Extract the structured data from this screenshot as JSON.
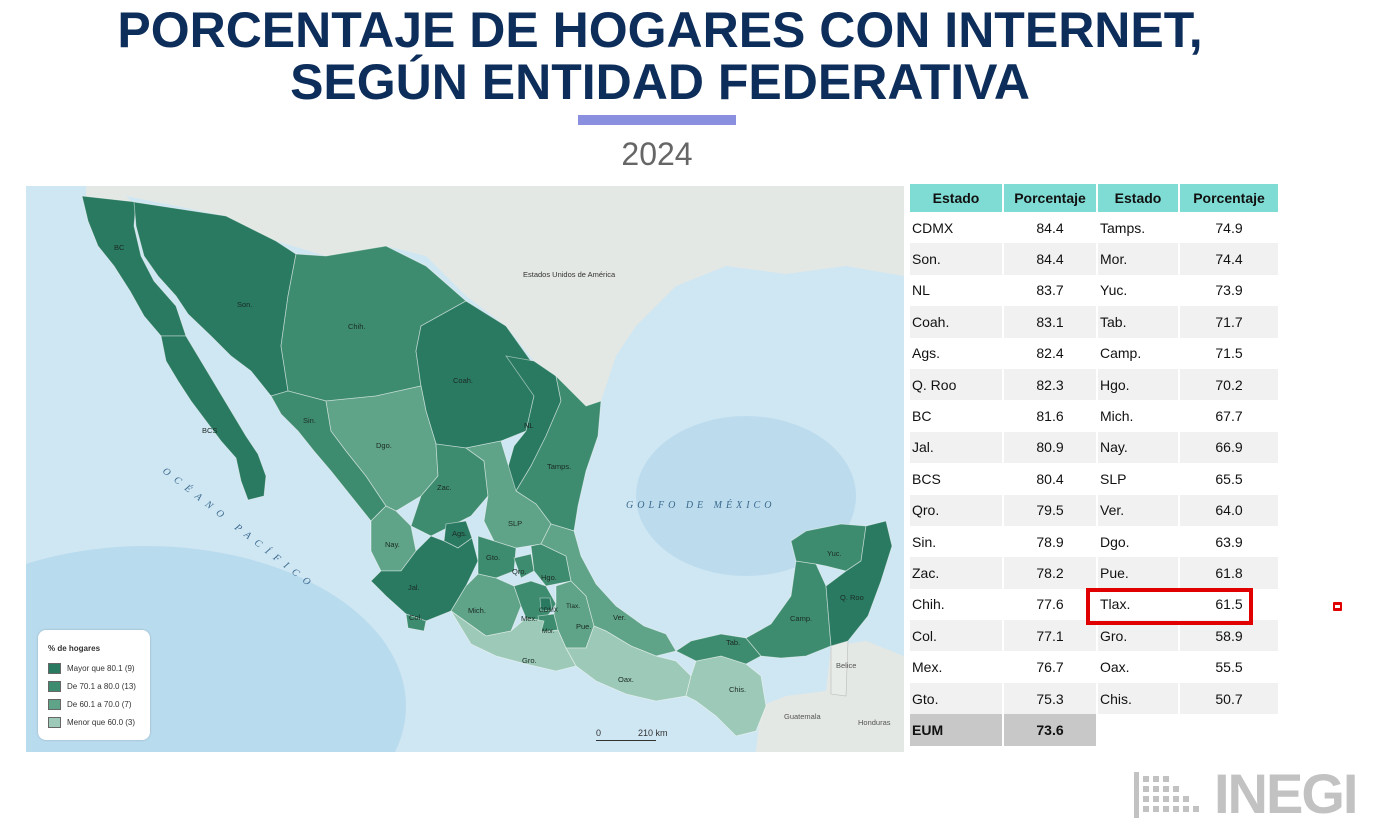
{
  "title_lines": [
    "PORCENTAJE DE HOGARES CON INTERNET,",
    "SEGÚN ENTIDAD FEDERATIVA"
  ],
  "year": "2024",
  "colors": {
    "title": "#0d2d5a",
    "accent_bar": "#8b8fe0",
    "table_header": "#7fdcd4",
    "highlight": "#e00000",
    "class_1": "#2a7a62",
    "class_2": "#3e8c70",
    "class_3": "#5fa389",
    "class_4": "#9dc9b8",
    "land_other": "#e4e8e4",
    "ocean": "#cfe6f3"
  },
  "map": {
    "labels": {
      "usa": "Estados Unidos de América",
      "gulf": "GOLFO DE MÉXICO",
      "pacific": "OCÉANO PACÍFICO",
      "belize": "Belice",
      "guatemala": "Guatemala",
      "honduras": "Honduras"
    },
    "states": [
      {
        "label": "BC",
        "class": 1
      },
      {
        "label": "Son.",
        "class": 1
      },
      {
        "label": "Chih.",
        "class": 2
      },
      {
        "label": "Coah.",
        "class": 1
      },
      {
        "label": "NL",
        "class": 1
      },
      {
        "label": "Tamps.",
        "class": 2
      },
      {
        "label": "BCS",
        "class": 1
      },
      {
        "label": "Sin.",
        "class": 2
      },
      {
        "label": "Dgo.",
        "class": 3
      },
      {
        "label": "Zac.",
        "class": 2
      },
      {
        "label": "SLP",
        "class": 3
      },
      {
        "label": "Nay.",
        "class": 3
      },
      {
        "label": "Ags.",
        "class": 1
      },
      {
        "label": "Jal.",
        "class": 1
      },
      {
        "label": "Gto.",
        "class": 2
      },
      {
        "label": "Qro.",
        "class": 2
      },
      {
        "label": "Hgo.",
        "class": 2
      },
      {
        "label": "Col.",
        "class": 2
      },
      {
        "label": "Mich.",
        "class": 3
      },
      {
        "label": "Mex.",
        "class": 2
      },
      {
        "label": "CDMX",
        "class": 1
      },
      {
        "label": "Mor.",
        "class": 2
      },
      {
        "label": "Tlax.",
        "class": 3
      },
      {
        "label": "Pue.",
        "class": 3
      },
      {
        "label": "Ver.",
        "class": 3
      },
      {
        "label": "Gro.",
        "class": 4
      },
      {
        "label": "Oax.",
        "class": 4
      },
      {
        "label": "Chis.",
        "class": 4
      },
      {
        "label": "Tab.",
        "class": 2
      },
      {
        "label": "Camp.",
        "class": 2
      },
      {
        "label": "Yuc.",
        "class": 2
      },
      {
        "label": "Q. Roo",
        "class": 1
      }
    ],
    "legend": {
      "title": "% de hogares",
      "items": [
        {
          "label": "Mayor que 80.1 (9)",
          "color": "#2a7a62"
        },
        {
          "label": "De 70.1 a 80.0 (13)",
          "color": "#3e8c70"
        },
        {
          "label": "De 60.1 a 70.0 (7)",
          "color": "#5fa389"
        },
        {
          "label": "Menor que 60.0 (3)",
          "color": "#9dc9b8"
        }
      ]
    },
    "scale": {
      "start": "0",
      "end": "210 km"
    }
  },
  "table": {
    "headers": [
      "Estado",
      "Porcentaje",
      "Estado",
      "Porcentaje"
    ],
    "rows": [
      [
        "CDMX",
        "84.4",
        "Tamps.",
        "74.9"
      ],
      [
        "Son.",
        "84.4",
        "Mor.",
        "74.4"
      ],
      [
        "NL",
        "83.7",
        "Yuc.",
        "73.9"
      ],
      [
        "Coah.",
        "83.1",
        "Tab.",
        "71.7"
      ],
      [
        "Ags.",
        "82.4",
        "Camp.",
        "71.5"
      ],
      [
        "Q. Roo",
        "82.3",
        "Hgo.",
        "70.2"
      ],
      [
        "BC",
        "81.6",
        "Mich.",
        "67.7"
      ],
      [
        "Jal.",
        "80.9",
        "Nay.",
        "66.9"
      ],
      [
        "BCS",
        "80.4",
        "SLP",
        "65.5"
      ],
      [
        "Qro.",
        "79.5",
        "Ver.",
        "64.0"
      ],
      [
        "Sin.",
        "78.9",
        "Dgo.",
        "63.9"
      ],
      [
        "Zac.",
        "78.2",
        "Pue.",
        "61.8"
      ],
      [
        "Chih.",
        "77.6",
        "Tlax.",
        "61.5"
      ],
      [
        "Col.",
        "77.1",
        "Gro.",
        "58.9"
      ],
      [
        "Mex.",
        "76.7",
        "Oax.",
        "55.5"
      ],
      [
        "Gto.",
        "75.3",
        "Chis.",
        "50.7"
      ]
    ],
    "total": {
      "label": "EUM",
      "value": "73.6"
    },
    "highlighted_state": "Tlax."
  },
  "logo": {
    "text": "INEGI"
  }
}
